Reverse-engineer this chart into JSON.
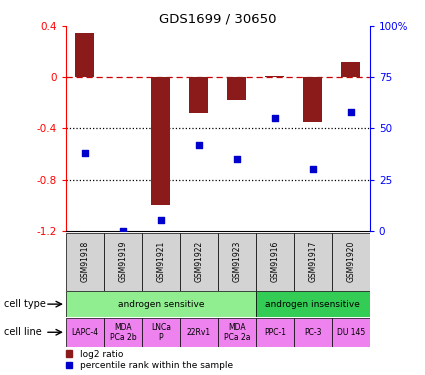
{
  "title": "GDS1699 / 30650",
  "samples": [
    "GSM91918",
    "GSM91919",
    "GSM91921",
    "GSM91922",
    "GSM91923",
    "GSM91916",
    "GSM91917",
    "GSM91920"
  ],
  "log2_ratio": [
    0.35,
    0.0,
    -1.0,
    -0.28,
    -0.18,
    0.01,
    -0.35,
    0.12
  ],
  "percentile_rank": [
    38,
    0,
    5,
    42,
    35,
    55,
    30,
    58
  ],
  "cell_types": [
    {
      "label": "androgen sensitive",
      "start": 0,
      "end": 5,
      "color": "#90EE90"
    },
    {
      "label": "androgen insensitive",
      "start": 5,
      "end": 8,
      "color": "#33CC55"
    }
  ],
  "cell_lines": [
    {
      "label": "LAPC-4",
      "start": 0,
      "end": 1
    },
    {
      "label": "MDA\nPCa 2b",
      "start": 1,
      "end": 2
    },
    {
      "label": "LNCa\nP",
      "start": 2,
      "end": 3
    },
    {
      "label": "22Rv1",
      "start": 3,
      "end": 4
    },
    {
      "label": "MDA\nPCa 2a",
      "start": 4,
      "end": 5
    },
    {
      "label": "PPC-1",
      "start": 5,
      "end": 6
    },
    {
      "label": "PC-3",
      "start": 6,
      "end": 7
    },
    {
      "label": "DU 145",
      "start": 7,
      "end": 8
    }
  ],
  "cell_line_color": "#EE82EE",
  "bar_color": "#8B1A1A",
  "dot_color": "#0000CC",
  "dashed_line_color": "#CC0000",
  "left_ylim": [
    -1.2,
    0.4
  ],
  "right_ylim": [
    0,
    100
  ],
  "left_yticks": [
    -1.2,
    -0.8,
    -0.4,
    0.0,
    0.4
  ],
  "left_yticklabels": [
    "-1.2",
    "-0.8",
    "-0.4",
    "0",
    "0.4"
  ],
  "right_yticks": [
    0,
    25,
    50,
    75,
    100
  ],
  "right_yticklabels": [
    "0",
    "25",
    "50",
    "75",
    "100%"
  ],
  "dotted_lines": [
    -0.4,
    -0.8
  ],
  "legend_items": [
    {
      "label": "log2 ratio",
      "color": "#8B1A1A"
    },
    {
      "label": "percentile rank within the sample",
      "color": "#0000CC"
    }
  ]
}
